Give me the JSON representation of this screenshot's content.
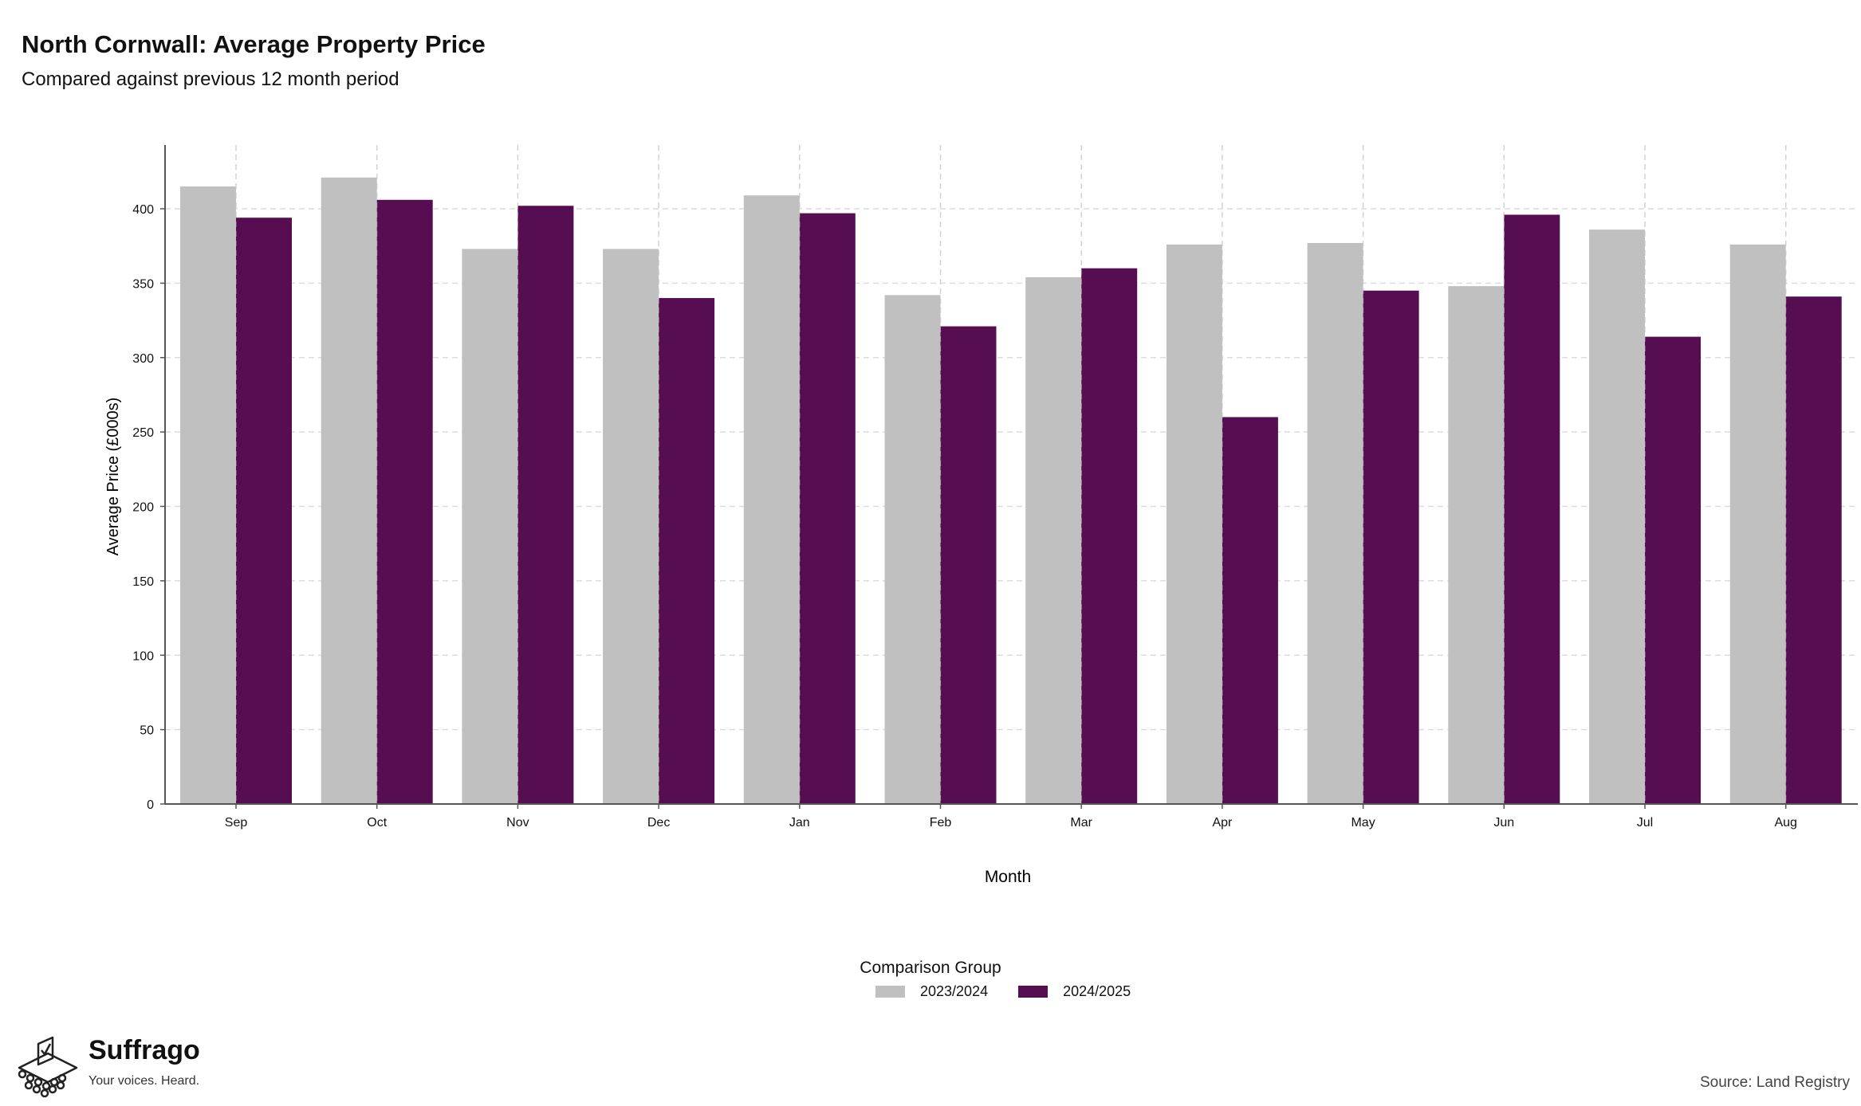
{
  "header": {
    "title": "North Cornwall: Average Property Price",
    "subtitle": "Compared against previous 12 month period"
  },
  "legend": {
    "title": "Comparison Group",
    "items": [
      {
        "label": "2023/2024",
        "color": "#c0c0c0"
      },
      {
        "label": "2024/2025",
        "color": "#560d51"
      }
    ]
  },
  "footer": {
    "brand": "Suffrago",
    "tagline": "Your voices. Heard.",
    "source": "Source: Land Registry"
  },
  "chart_data": {
    "type": "bar",
    "xlabel": "Month",
    "ylabel": "Average Price (£000s)",
    "ylim": [
      0,
      440
    ],
    "yticks": [
      0,
      50,
      100,
      150,
      200,
      250,
      300,
      350,
      400
    ],
    "grid": true,
    "legend_position": "bottom",
    "categories": [
      "Sep",
      "Oct",
      "Nov",
      "Dec",
      "Jan",
      "Feb",
      "Mar",
      "Apr",
      "May",
      "Jun",
      "Jul",
      "Aug"
    ],
    "series": [
      {
        "name": "2023/2024",
        "color": "#c0c0c0",
        "values": [
          415,
          421,
          373,
          373,
          409,
          342,
          354,
          376,
          377,
          348,
          386,
          376
        ]
      },
      {
        "name": "2024/2025",
        "color": "#560d51",
        "values": [
          394,
          406,
          402,
          340,
          397,
          321,
          360,
          260,
          345,
          396,
          314,
          341
        ]
      }
    ]
  }
}
